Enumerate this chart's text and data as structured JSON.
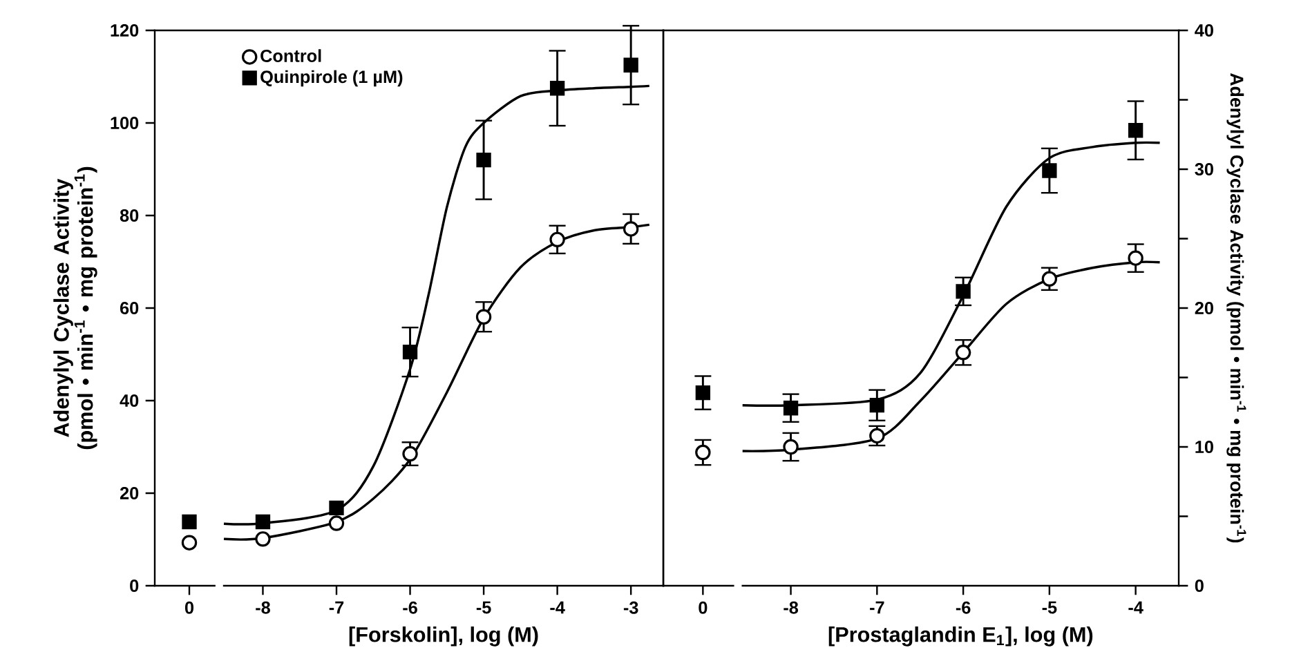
{
  "chart_data": [
    {
      "type": "scatter",
      "ylabel": "Adenylyl Cyclase Activity (pmol • min$^{-1}$ • mg protein$^{-1}$)",
      "categories": [
        "0"
      ],
      "ylim": [
        0,
        120
      ],
      "yticks": [
        0,
        20,
        40,
        60,
        80,
        100,
        120
      ],
      "series": [
        {
          "marker": "circle",
          "color": "#000000",
          "values": [
            9.3
          ]
        },
        {
          "marker": "square",
          "color": "#000000",
          "values": [
            13.8
          ]
        }
      ]
    },
    {
      "type": "scatter",
      "xlabel": "[Forskolin], log (M)",
      "xlim": [
        -8.53,
        -2.56
      ],
      "xticks": [
        -8,
        -7,
        -6,
        -5,
        -4,
        -3
      ],
      "ylim": [
        0,
        120
      ],
      "tick_labels": "x",
      "legend": "top left",
      "series": [
        {
          "type": "line",
          "color": "#000000",
          "x": [
            -8.53,
            -8,
            -7,
            -6.5,
            -6,
            -5.5,
            -5,
            -4.5,
            -4,
            -3.5,
            -3,
            -2.75
          ],
          "values": [
            10.1,
            10.3,
            13.8,
            18.8,
            27.3,
            41.8,
            57.8,
            68.8,
            74.3,
            76.8,
            77.5,
            78
          ]
        },
        {
          "type": "line",
          "color": "#000000",
          "x": [
            -8.53,
            -8,
            -7,
            -6.5,
            -6,
            -5.75,
            -5.5,
            -5.25,
            -5,
            -4.5,
            -4,
            -3.5,
            -3,
            -2.75
          ],
          "values": [
            13.4,
            13.5,
            16.3,
            25.8,
            46.8,
            62.8,
            81.8,
            94.8,
            100,
            105.8,
            107,
            107.5,
            107.8,
            108
          ]
        },
        {
          "name": "Control",
          "marker": "circle",
          "color": "#000000",
          "x": [
            -8,
            -7,
            -6,
            -5,
            -4,
            -3
          ],
          "values": [
            10.1,
            13.5,
            28.5,
            58.1,
            74.8,
            77.1
          ],
          "errors": [
            null,
            null,
            2.5,
            3.2,
            3,
            3.2
          ]
        },
        {
          "name": "Quinpirole (1 µM)",
          "marker": "square",
          "color": "#000000",
          "x": [
            -8,
            -7,
            -6,
            -5,
            -4,
            -3
          ],
          "values": [
            13.8,
            16.8,
            50.5,
            92,
            107.5,
            112.5
          ],
          "errors": [
            null,
            null,
            5.3,
            8.5,
            8.1,
            8.5
          ]
        }
      ]
    },
    {
      "type": "scatter",
      "categories": [
        "0"
      ],
      "y2lim": [
        0,
        40
      ],
      "tick_labels": "x",
      "series": [
        {
          "axis": "y2",
          "marker": "circle",
          "color": "#000000",
          "values": [
            9.6
          ],
          "errors": [
            0.9
          ]
        },
        {
          "axis": "y2",
          "marker": "square",
          "color": "#000000",
          "values": [
            13.9
          ],
          "errors": [
            1.2
          ]
        }
      ]
    },
    {
      "type": "scatter",
      "xlabel": "[Prostaglandin E$_{1}$], log (M)",
      "y2label": "Adenylyl Cyclase Activity (pmol • min$^{-1}$ • mg protein$^{-1}$)",
      "xlim": [
        -8.56,
        -3.5
      ],
      "xticks": [
        -8,
        -7,
        -6,
        -5,
        -4
      ],
      "y2lim": [
        0,
        40
      ],
      "y2ticks": [
        0,
        {
          "value": 5,
          "label": null
        },
        10,
        {
          "value": 15,
          "label": null
        },
        20,
        {
          "value": 25,
          "label": null
        },
        30,
        {
          "value": 35,
          "label": null
        },
        40
      ],
      "series": [
        {
          "type": "line",
          "axis": "y2",
          "color": "#000000",
          "x": [
            -8.56,
            -8,
            -7,
            -6.5,
            -6,
            -5.5,
            -5,
            -4.5,
            -4,
            -3.72
          ],
          "values": [
            9.7,
            9.8,
            10.6,
            13.3,
            16.8,
            20.3,
            22.1,
            22.9,
            23.3,
            23.3
          ]
        },
        {
          "type": "line",
          "axis": "y2",
          "color": "#000000",
          "x": [
            -8.56,
            -8,
            -7,
            -6.5,
            -6,
            -5.5,
            -5,
            -4.5,
            -4,
            -3.72
          ],
          "values": [
            13,
            13,
            13.4,
            15.3,
            20.9,
            27.3,
            30.8,
            31.6,
            31.9,
            31.9
          ]
        },
        {
          "axis": "y2",
          "marker": "circle",
          "color": "#000000",
          "x": [
            -8,
            -7,
            -6,
            -5,
            -4
          ],
          "values": [
            10,
            10.8,
            16.8,
            22.1,
            23.6
          ],
          "errors": [
            1,
            0.7,
            0.9,
            0.8,
            1
          ]
        },
        {
          "axis": "y2",
          "marker": "square",
          "color": "#000000",
          "x": [
            -8,
            -7,
            -6,
            -5,
            -4
          ],
          "values": [
            12.8,
            13,
            21.2,
            29.9,
            32.8
          ],
          "errors": [
            1,
            1.1,
            1,
            1.6,
            2.1
          ]
        }
      ]
    }
  ]
}
